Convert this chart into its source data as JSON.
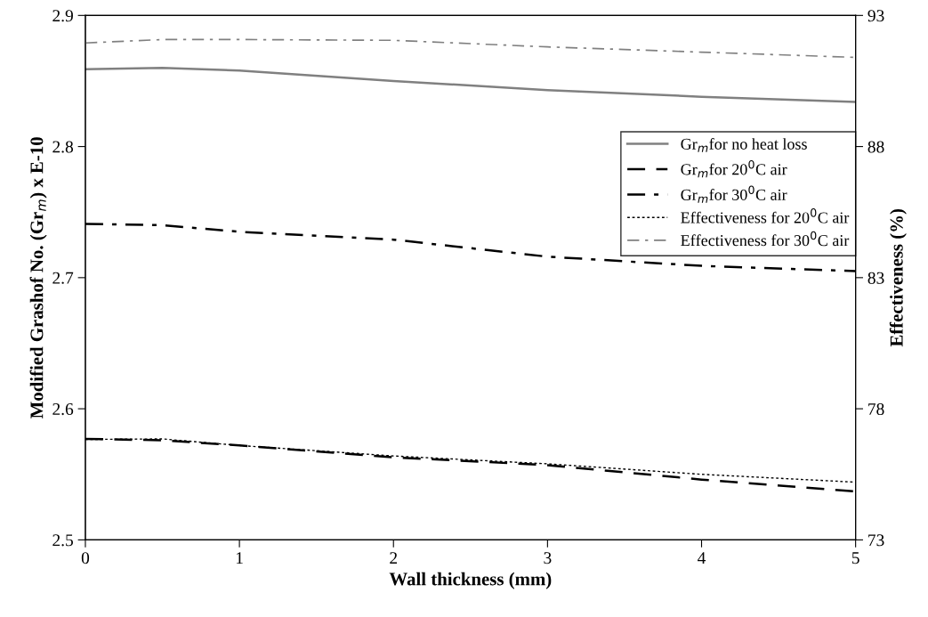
{
  "chart_data": {
    "type": "line",
    "xlabel": "Wall thickness (mm)",
    "ylabel": "Modified Grashof No. (Gr$_{m}$) x E-10",
    "y2label": "Effectiveness (%)",
    "x": [
      0,
      0.5,
      1,
      2,
      3,
      4,
      5
    ],
    "xlim": [
      0,
      5
    ],
    "xticks": [
      0,
      1,
      2,
      3,
      4,
      5
    ],
    "ylim": [
      2.5,
      2.9
    ],
    "yticks": [
      2.5,
      2.6,
      2.7,
      2.8,
      2.9
    ],
    "y2lim": [
      73,
      93
    ],
    "y2ticks": [
      73,
      78,
      83,
      88,
      93
    ],
    "grid": false,
    "legend": "right",
    "marker": "none",
    "series": [
      {
        "name": "Gr$_{m}$for no heat loss",
        "color": "#808080",
        "line_style": "solid",
        "values": [
          2.859,
          2.86,
          2.858,
          2.85,
          2.843,
          2.838,
          2.834
        ]
      },
      {
        "name": "Gr$_{m}$for 20$^{0}$C air",
        "color": "#000000",
        "line_style": "dashed",
        "values": [
          2.577,
          2.576,
          2.572,
          2.563,
          2.557,
          2.546,
          2.537
        ]
      },
      {
        "name": "Gr$_{m}$for 30$^{0}$C air",
        "color": "#000000",
        "line_style": "dashdot",
        "values": [
          2.741,
          2.74,
          2.735,
          2.729,
          2.716,
          2.709,
          2.705
        ]
      },
      {
        "name": "Effectiveness for 20$^{0}$C air",
        "color": "#000000",
        "line_style": "dotted",
        "axis": "y2",
        "values": [
          76.83,
          76.85,
          76.6,
          76.2,
          75.9,
          75.5,
          75.2
        ]
      },
      {
        "name": "Effectiveness for 30$^{0}$C air",
        "color": "#808080",
        "line_style": "dashdot",
        "axis": "y2",
        "values": [
          91.95,
          92.08,
          92.08,
          92.05,
          91.8,
          91.6,
          91.4
        ]
      }
    ]
  }
}
